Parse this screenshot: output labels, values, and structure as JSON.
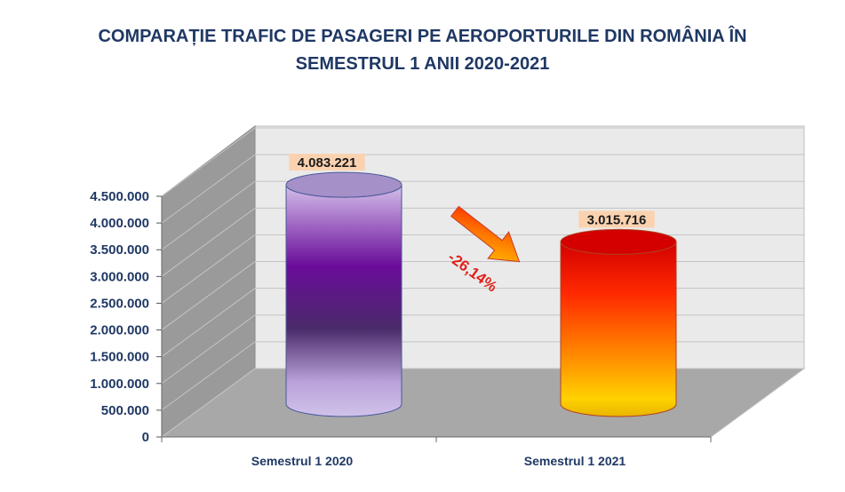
{
  "chart_data": {
    "type": "bar",
    "style": "3d-cylinder",
    "title_lines": [
      "COMPARAȚIE TRAFIC DE PASAGERI PE AEROPORTURILE DIN ROMÂNIA ÎN",
      "SEMESTRUL 1 ANII 2020-2021"
    ],
    "categories": [
      "Semestrul 1 2020",
      "Semestrul 1 2021"
    ],
    "values": [
      4083221,
      3015716
    ],
    "value_labels": [
      "4.083.221",
      "3.015.716"
    ],
    "ylim": [
      0,
      4500000
    ],
    "yticks": [
      0,
      500000,
      1000000,
      1500000,
      2000000,
      2500000,
      3000000,
      3500000,
      4000000,
      4500000
    ],
    "ytick_labels": [
      "0",
      "500.000",
      "1.000.000",
      "1.500.000",
      "2.000.000",
      "2.500.000",
      "3.000.000",
      "3.500.000",
      "4.000.000",
      "4.500.000"
    ],
    "grid": true,
    "colors": [
      "#7b10a8",
      "#ff1a00"
    ],
    "annotation": "-26,14%"
  }
}
